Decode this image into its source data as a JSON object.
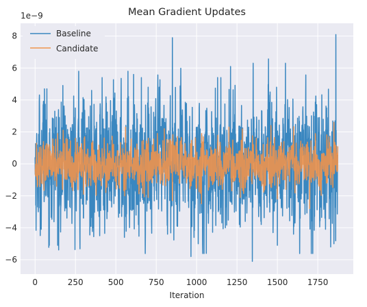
{
  "chart_data": {
    "type": "line",
    "title": "Mean Gradient Updates",
    "xlabel": "Iteration",
    "ylabel": "",
    "y_offset_text": "1e−9",
    "y_scale_factor": 1e-09,
    "xlim": [
      -90,
      1970
    ],
    "ylim": [
      -6.9,
      8.8
    ],
    "x_ticks": [
      0,
      250,
      500,
      750,
      1000,
      1250,
      1500,
      1750
    ],
    "y_ticks": [
      -6,
      -4,
      -2,
      0,
      2,
      4,
      6,
      8
    ],
    "grid": true,
    "legend_position": "top-left",
    "n_points": 1875,
    "series": [
      {
        "name": "Baseline",
        "color": "#3a87c0",
        "envelope_max": 8.1,
        "envelope_min": -6.1,
        "std": 2.0,
        "peaks": [
          [
            10,
            1.9
          ],
          [
            58,
            4.7
          ],
          [
            73,
            4.7
          ],
          [
            270,
            5.8
          ],
          [
            350,
            4.6
          ],
          [
            415,
            5.4
          ],
          [
            553,
            4.5
          ],
          [
            575,
            5.8
          ],
          [
            610,
            5.6
          ],
          [
            700,
            4.8
          ],
          [
            768,
            4.8
          ],
          [
            850,
            7.9
          ],
          [
            965,
            5.5
          ],
          [
            1060,
            5.6
          ],
          [
            1150,
            5.4
          ],
          [
            1210,
            6.1
          ],
          [
            1350,
            6.3
          ],
          [
            1455,
            4.5
          ],
          [
            1495,
            4.8
          ],
          [
            1550,
            6.3
          ],
          [
            1600,
            4.8
          ],
          [
            1862,
            8.1
          ]
        ],
        "troughs": [
          [
            20,
            -3.0
          ],
          [
            88,
            -5.1
          ],
          [
            140,
            -5.1
          ],
          [
            400,
            -4.5
          ],
          [
            553,
            -4.6
          ],
          [
            640,
            -3.8
          ],
          [
            820,
            -4.4
          ],
          [
            965,
            -5.8
          ],
          [
            1010,
            -5.0
          ],
          [
            1060,
            -5.6
          ],
          [
            1345,
            -6.1
          ],
          [
            1500,
            -5.1
          ],
          [
            1600,
            -4.4
          ],
          [
            1830,
            -5.2
          ],
          [
            1850,
            -5.0
          ]
        ]
      },
      {
        "name": "Candidate",
        "color": "#f0944d",
        "envelope_max": 2.6,
        "envelope_min": -2.8,
        "std": 0.7,
        "peaks": [
          [
            8,
            1.3
          ],
          [
            140,
            1.9
          ],
          [
            250,
            1.6
          ],
          [
            560,
            2.3
          ],
          [
            800,
            2.2
          ],
          [
            1200,
            2.3
          ],
          [
            1460,
            2.4
          ],
          [
            1700,
            2.2
          ],
          [
            1850,
            2.6
          ]
        ],
        "troughs": [
          [
            5,
            -0.7
          ],
          [
            300,
            -1.9
          ],
          [
            555,
            -2.0
          ],
          [
            700,
            -2.1
          ],
          [
            850,
            -2.3
          ],
          [
            1030,
            -2.5
          ],
          [
            1270,
            -2.1
          ],
          [
            1500,
            -2.2
          ],
          [
            1700,
            -2.8
          ]
        ]
      }
    ]
  }
}
